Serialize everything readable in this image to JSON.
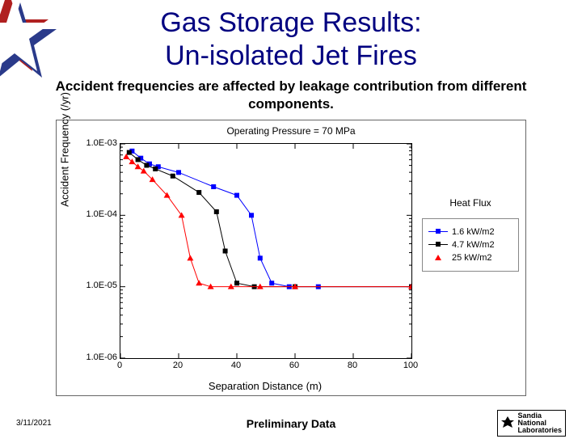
{
  "title_line1": "Gas Storage Results:",
  "title_line2": "Un-isolated Jet Fires",
  "title_color": "#000080",
  "subtitle": "Accident frequencies are affected by leakage contribution from different components.",
  "chart": {
    "title": "Operating Pressure = 70 MPa",
    "xlabel": "Separation Distance (m)",
    "ylabel": "Accident Frequency (/yr)",
    "xlim": [
      0,
      100
    ],
    "xticks": [
      0,
      20,
      40,
      60,
      80,
      100
    ],
    "ylim_log": [
      -6,
      -3
    ],
    "yticks": [
      {
        "label": "1.0E-03",
        "exp": -3
      },
      {
        "label": "1.0E-04",
        "exp": -4
      },
      {
        "label": "1.0E-05",
        "exp": -5
      },
      {
        "label": "1.0E-06",
        "exp": -6
      }
    ],
    "background_color": "#ffffff",
    "axis_color": "#000000",
    "legend_title": "Heat Flux",
    "series": [
      {
        "name": "1.6 kW/m2",
        "color": "#0000ff",
        "marker": "square",
        "linewidth": 1,
        "points": [
          {
            "x": 4,
            "y": -3.1
          },
          {
            "x": 7,
            "y": -3.2
          },
          {
            "x": 10,
            "y": -3.28
          },
          {
            "x": 13,
            "y": -3.32
          },
          {
            "x": 20,
            "y": -3.4
          },
          {
            "x": 32,
            "y": -3.6
          },
          {
            "x": 40,
            "y": -3.72
          },
          {
            "x": 45,
            "y": -4.0
          },
          {
            "x": 48,
            "y": -4.6
          },
          {
            "x": 52,
            "y": -4.95
          },
          {
            "x": 58,
            "y": -5.0
          },
          {
            "x": 68,
            "y": -5.0
          },
          {
            "x": 100,
            "y": -5.0
          }
        ]
      },
      {
        "name": "4.7 kW/m2",
        "color": "#000000",
        "marker": "square",
        "linewidth": 1,
        "points": [
          {
            "x": 3,
            "y": -3.12
          },
          {
            "x": 6,
            "y": -3.22
          },
          {
            "x": 9,
            "y": -3.3
          },
          {
            "x": 12,
            "y": -3.35
          },
          {
            "x": 18,
            "y": -3.45
          },
          {
            "x": 27,
            "y": -3.68
          },
          {
            "x": 33,
            "y": -3.95
          },
          {
            "x": 36,
            "y": -4.5
          },
          {
            "x": 40,
            "y": -4.95
          },
          {
            "x": 46,
            "y": -5.0
          },
          {
            "x": 60,
            "y": -5.0
          },
          {
            "x": 100,
            "y": -5.0
          }
        ]
      },
      {
        "name": "25 kW/m2",
        "color": "#ff0000",
        "marker": "triangle",
        "linewidth": 1,
        "points": [
          {
            "x": 2,
            "y": -3.18
          },
          {
            "x": 4,
            "y": -3.25
          },
          {
            "x": 6,
            "y": -3.32
          },
          {
            "x": 8,
            "y": -3.38
          },
          {
            "x": 11,
            "y": -3.5
          },
          {
            "x": 16,
            "y": -3.72
          },
          {
            "x": 21,
            "y": -4.0
          },
          {
            "x": 24,
            "y": -4.6
          },
          {
            "x": 27,
            "y": -4.95
          },
          {
            "x": 31,
            "y": -5.0
          },
          {
            "x": 38,
            "y": -5.0
          },
          {
            "x": 48,
            "y": -5.0
          },
          {
            "x": 60,
            "y": -5.0
          },
          {
            "x": 100,
            "y": -5.0
          }
        ]
      }
    ]
  },
  "footer": {
    "date": "3/11/2021",
    "center": "Preliminary Data",
    "logo_text": "Sandia\nNational\nLaboratories"
  },
  "star": {
    "red": "#b02020",
    "blue": "#2a3a8a",
    "white": "#ffffff"
  }
}
